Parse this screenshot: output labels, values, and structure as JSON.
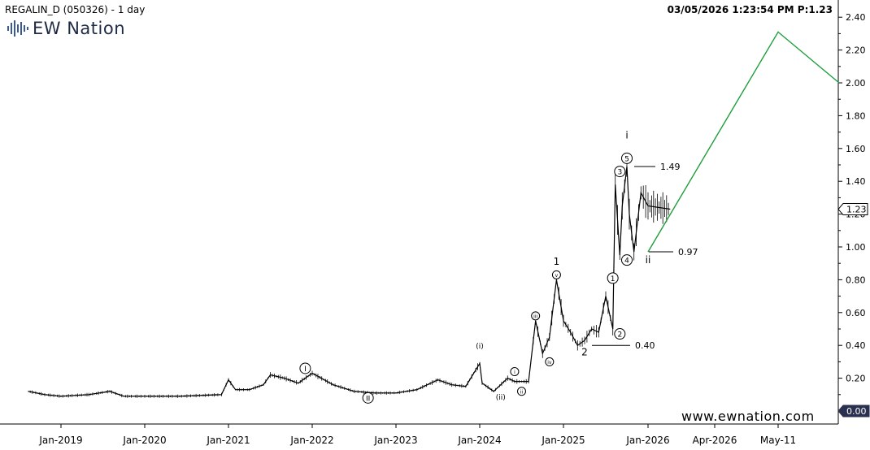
{
  "header": {
    "title": "REGALIN_D (050326) - 1 day",
    "stamp": "03/05/2026 1:23:54 PM  P:1.23"
  },
  "logo": {
    "text": "EW Nation"
  },
  "watermark": "www.ewnation.com",
  "colors": {
    "price": "#000000",
    "projection": "#1e9e3a",
    "background": "#ffffff",
    "axis": "#000000"
  },
  "chart_data": {
    "type": "line",
    "title": "REGALIN_D (050326) - 1 day",
    "xlabel": "",
    "ylabel": "",
    "ylim": [
      0.0,
      2.5
    ],
    "x_ticks": [
      "Jan-2019",
      "Jan-2020",
      "Jan-2021",
      "Jan-2022",
      "Jan-2023",
      "Jan-2024",
      "Jan-2025",
      "Jan-2026",
      "Apr-2026",
      "May-11"
    ],
    "y_ticks": [
      "2.40",
      "2.20",
      "2.00",
      "1.80",
      "1.60",
      "1.40",
      "1.20",
      "1.00",
      "0.80",
      "0.60",
      "0.40",
      "0.20",
      "0.00"
    ],
    "last_price_label": "1.23",
    "zero_label": "0.00",
    "series": [
      {
        "values_x": [
          "2018-05",
          "2018-09",
          "2019-01",
          "2019-05",
          "2019-08",
          "2019-10",
          "2020-01",
          "2020-06",
          "2020-12",
          "2021-01",
          "2021-02",
          "2021-04",
          "2021-06",
          "2021-07",
          "2021-09",
          "2021-11",
          "2022-01",
          "2022-04",
          "2022-07",
          "2022-10",
          "2023-01",
          "2023-04",
          "2023-07",
          "2023-09",
          "2023-11",
          "2024-01",
          "2024-01",
          "2024-03",
          "2024-05",
          "2024-06",
          "2024-07",
          "2024-08",
          "2024-09",
          "2024-10",
          "2024-11",
          "2024-12",
          "2025-01",
          "2025-02",
          "2025-03",
          "2025-04",
          "2025-05",
          "2025-06",
          "2025-07",
          "2025-08",
          "2025-08",
          "2025-09",
          "2025-09",
          "2025-10",
          "2025-10",
          "2025-11",
          "2025-12",
          "2026-01",
          "2026-02"
        ],
        "values": [
          0.12,
          0.1,
          0.09,
          0.1,
          0.12,
          0.09,
          0.09,
          0.09,
          0.1,
          0.19,
          0.13,
          0.13,
          0.16,
          0.22,
          0.2,
          0.17,
          0.23,
          0.16,
          0.12,
          0.11,
          0.11,
          0.13,
          0.19,
          0.16,
          0.15,
          0.29,
          0.17,
          0.12,
          0.2,
          0.18,
          0.18,
          0.18,
          0.55,
          0.35,
          0.45,
          0.8,
          0.55,
          0.48,
          0.4,
          0.43,
          0.5,
          0.48,
          0.7,
          0.5,
          1.38,
          0.95,
          1.25,
          1.49,
          1.2,
          0.97,
          1.33,
          1.25,
          1.23
        ]
      },
      {
        "name": "",
        "values_x": [
          "2026-01",
          "2026-05",
          "2026-06"
        ],
        "values": [
          0.97,
          2.31,
          2.0
        ]
      }
    ],
    "levels": [
      {
        "label": "1.49",
        "value": 1.49
      },
      {
        "label": "0.97",
        "value": 0.97
      },
      {
        "label": "0.40",
        "value": 0.4
      }
    ],
    "wave_labels": [
      {
        "text": "i",
        "x": "2025-10",
        "y": 1.66,
        "style": "plain"
      },
      {
        "text": "5",
        "x": "2025-10",
        "y": 1.54,
        "style": "circle"
      },
      {
        "text": "3",
        "x": "2025-09",
        "y": 1.46,
        "style": "circle"
      },
      {
        "text": "4",
        "x": "2025-10",
        "y": 0.92,
        "style": "circle"
      },
      {
        "text": "ii",
        "x": "2026-01",
        "y": 0.9,
        "style": "plain"
      },
      {
        "text": "1",
        "x": "2025-08",
        "y": 0.81,
        "style": "circle"
      },
      {
        "text": "2",
        "x": "2025-09",
        "y": 0.47,
        "style": "circle"
      },
      {
        "text": "2",
        "x": "2025-04",
        "y": 0.34,
        "style": "plain"
      },
      {
        "text": "1",
        "x": "2024-12",
        "y": 0.89,
        "style": "plain"
      },
      {
        "text": "v",
        "x": "2024-12",
        "y": 0.83,
        "style": "circle-small"
      },
      {
        "text": "iii",
        "x": "2024-09",
        "y": 0.58,
        "style": "circle-small"
      },
      {
        "text": "iv",
        "x": "2024-11",
        "y": 0.3,
        "style": "circle-small"
      },
      {
        "text": "(i)",
        "x": "2024-01",
        "y": 0.38,
        "style": "plain-small"
      },
      {
        "text": "(ii)",
        "x": "2024-04",
        "y": 0.07,
        "style": "plain-small"
      },
      {
        "text": "i",
        "x": "2024-06",
        "y": 0.24,
        "style": "circle-small"
      },
      {
        "text": "ii",
        "x": "2024-07",
        "y": 0.12,
        "style": "circle-small"
      },
      {
        "text": "I",
        "x": "2021-12",
        "y": 0.26,
        "style": "circle"
      },
      {
        "text": "II",
        "x": "2022-09",
        "y": 0.08,
        "style": "circle"
      }
    ]
  }
}
